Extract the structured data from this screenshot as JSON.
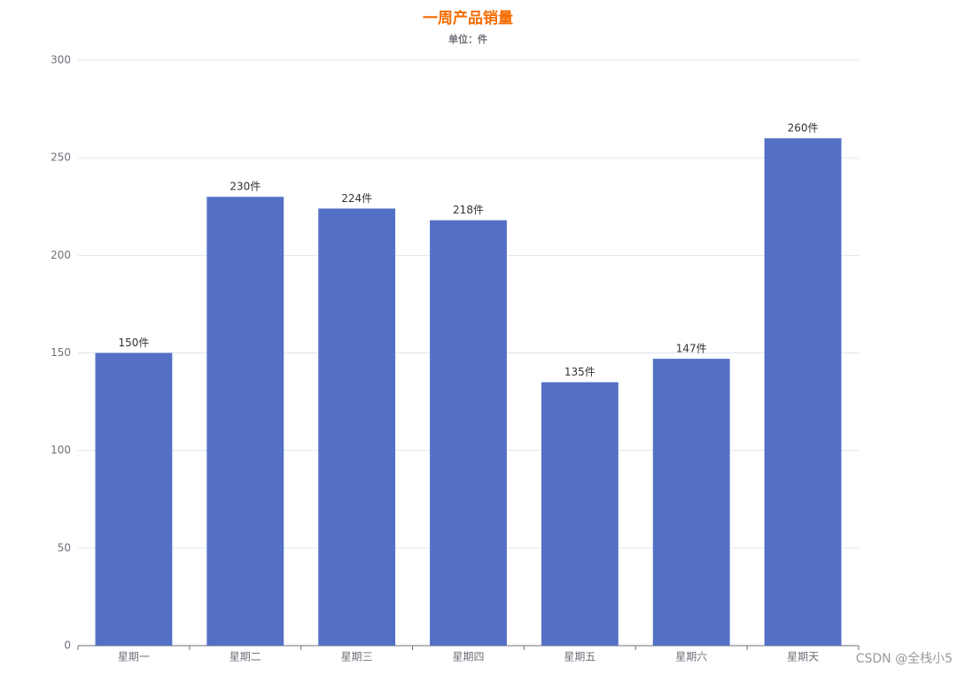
{
  "chart_data": {
    "type": "bar",
    "title": "一周产品销量",
    "subtitle": "单位：件",
    "categories": [
      "星期一",
      "星期二",
      "星期三",
      "星期四",
      "星期五",
      "星期六",
      "星期天"
    ],
    "values": [
      150,
      230,
      224,
      218,
      135,
      147,
      260
    ],
    "value_labels": [
      "150件",
      "230件",
      "224件",
      "218件",
      "135件",
      "147件",
      "260件"
    ],
    "color": "#5470c6",
    "ylim": [
      0,
      300
    ],
    "yticks": [
      0,
      50,
      100,
      150,
      200,
      250,
      300
    ],
    "grid": true
  },
  "watermark": "CSDN @全栈小5"
}
